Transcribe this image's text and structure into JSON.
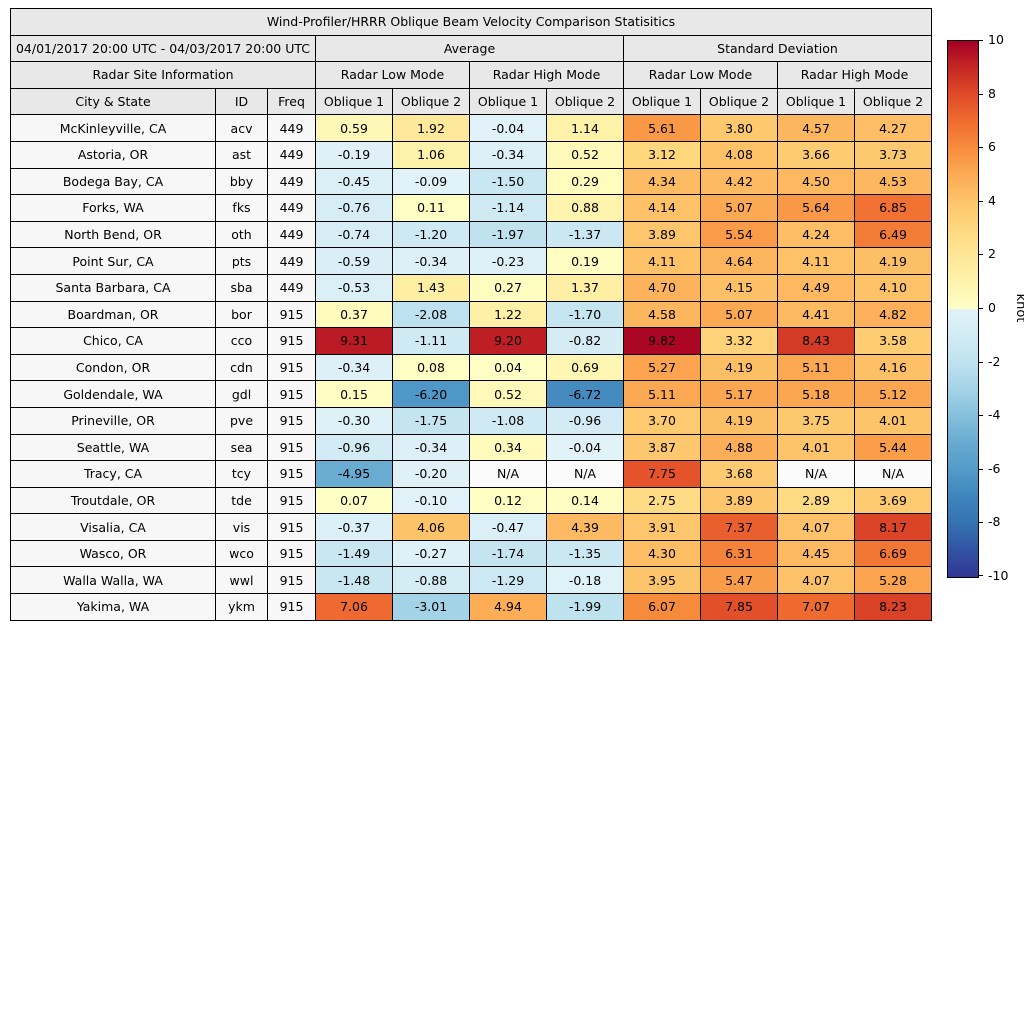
{
  "title": "Wind-Profiler/HRRR Oblique Beam Velocity Comparison Statisitics",
  "period": "04/01/2017 20:00 UTC - 04/03/2017 20:00 UTC",
  "headers": {
    "average": "Average",
    "std_dev": "Standard Deviation",
    "site_info": "Radar Site Information",
    "low_mode": "Radar Low Mode",
    "high_mode": "Radar High Mode",
    "city": "City & State",
    "id": "ID",
    "freq": "Freq",
    "oblique1": "Oblique 1",
    "oblique2": "Oblique 2"
  },
  "colorbar": {
    "label": "knot",
    "min": -10,
    "max": 10,
    "ticks": [
      10,
      8,
      6,
      4,
      2,
      0,
      -2,
      -4,
      -6,
      -8,
      -10
    ]
  },
  "colors": {
    "header_bg": "#e8e8e8",
    "label_bg": "#f7f7f7",
    "na_bg": "#fbfbfb",
    "border": "#000000",
    "warm_stops": [
      [
        0,
        "#ffffc6"
      ],
      [
        1,
        "#fef3ab"
      ],
      [
        2,
        "#fee797"
      ],
      [
        3,
        "#fed87f"
      ],
      [
        4,
        "#fdc46a"
      ],
      [
        5,
        "#fcab55"
      ],
      [
        6,
        "#f78d3d"
      ],
      [
        7,
        "#ef6c30"
      ],
      [
        8,
        "#e04a28"
      ],
      [
        9,
        "#c42723"
      ],
      [
        10,
        "#a50026"
      ]
    ],
    "cool_stops": [
      [
        0,
        "#e2f3f8"
      ],
      [
        1,
        "#d2ebf4"
      ],
      [
        2,
        "#bfe2ef"
      ],
      [
        3,
        "#a3d3e6"
      ],
      [
        4,
        "#85c0dc"
      ],
      [
        5,
        "#68aad0"
      ],
      [
        6,
        "#539bc8"
      ],
      [
        7,
        "#3f85bd"
      ],
      [
        8,
        "#3472b1"
      ],
      [
        9,
        "#3253a3"
      ],
      [
        10,
        "#313695"
      ]
    ]
  },
  "chart_data": {
    "type": "table",
    "title": "Wind-Profiler/HRRR Oblique Beam Velocity Comparison Statisitics",
    "subtitle": "04/01/2017 20:00 UTC - 04/03/2017 20:00 UTC",
    "value_unit": "knot",
    "value_range": [
      -10,
      10
    ],
    "colormap": "diverging blue-yellow-red (RdYlBu reversed)",
    "column_groups": [
      "Radar Site Information",
      "Average - Radar Low Mode",
      "Average - Radar High Mode",
      "Standard Deviation - Radar Low Mode",
      "Standard Deviation - Radar High Mode"
    ],
    "value_columns": [
      "Avg Low Oblique 1",
      "Avg Low Oblique 2",
      "Avg High Oblique 1",
      "Avg High Oblique 2",
      "Std Low Oblique 1",
      "Std Low Oblique 2",
      "Std High Oblique 1",
      "Std High Oblique 2"
    ],
    "rows": [
      {
        "city": "McKinleyville, CA",
        "id": "acv",
        "freq": "449",
        "values": [
          "0.59",
          "1.92",
          "-0.04",
          "1.14",
          "5.61",
          "3.80",
          "4.57",
          "4.27"
        ]
      },
      {
        "city": "Astoria, OR",
        "id": "ast",
        "freq": "449",
        "values": [
          "-0.19",
          "1.06",
          "-0.34",
          "0.52",
          "3.12",
          "4.08",
          "3.66",
          "3.73"
        ]
      },
      {
        "city": "Bodega Bay, CA",
        "id": "bby",
        "freq": "449",
        "values": [
          "-0.45",
          "-0.09",
          "-1.50",
          "0.29",
          "4.34",
          "4.42",
          "4.50",
          "4.53"
        ]
      },
      {
        "city": "Forks, WA",
        "id": "fks",
        "freq": "449",
        "values": [
          "-0.76",
          "0.11",
          "-1.14",
          "0.88",
          "4.14",
          "5.07",
          "5.64",
          "6.85"
        ]
      },
      {
        "city": "North Bend, OR",
        "id": "oth",
        "freq": "449",
        "values": [
          "-0.74",
          "-1.20",
          "-1.97",
          "-1.37",
          "3.89",
          "5.54",
          "4.24",
          "6.49"
        ]
      },
      {
        "city": "Point Sur, CA",
        "id": "pts",
        "freq": "449",
        "values": [
          "-0.59",
          "-0.34",
          "-0.23",
          "0.19",
          "4.11",
          "4.64",
          "4.11",
          "4.19"
        ]
      },
      {
        "city": "Santa Barbara, CA",
        "id": "sba",
        "freq": "449",
        "values": [
          "-0.53",
          "1.43",
          "0.27",
          "1.37",
          "4.70",
          "4.15",
          "4.49",
          "4.10"
        ]
      },
      {
        "city": "Boardman, OR",
        "id": "bor",
        "freq": "915",
        "values": [
          "0.37",
          "-2.08",
          "1.22",
          "-1.70",
          "4.58",
          "5.07",
          "4.41",
          "4.82"
        ]
      },
      {
        "city": "Chico, CA",
        "id": "cco",
        "freq": "915",
        "values": [
          "9.31",
          "-1.11",
          "9.20",
          "-0.82",
          "9.82",
          "3.32",
          "8.43",
          "3.58"
        ]
      },
      {
        "city": "Condon, OR",
        "id": "cdn",
        "freq": "915",
        "values": [
          "-0.34",
          "0.08",
          "0.04",
          "0.69",
          "5.27",
          "4.19",
          "5.11",
          "4.16"
        ]
      },
      {
        "city": "Goldendale, WA",
        "id": "gdl",
        "freq": "915",
        "values": [
          "0.15",
          "-6.20",
          "0.52",
          "-6.72",
          "5.11",
          "5.17",
          "5.18",
          "5.12"
        ]
      },
      {
        "city": "Prineville, OR",
        "id": "pve",
        "freq": "915",
        "values": [
          "-0.30",
          "-1.75",
          "-1.08",
          "-0.96",
          "3.70",
          "4.19",
          "3.75",
          "4.01"
        ]
      },
      {
        "city": "Seattle, WA",
        "id": "sea",
        "freq": "915",
        "values": [
          "-0.96",
          "-0.34",
          "0.34",
          "-0.04",
          "3.87",
          "4.88",
          "4.01",
          "5.44"
        ]
      },
      {
        "city": "Tracy, CA",
        "id": "tcy",
        "freq": "915",
        "values": [
          "-4.95",
          "-0.20",
          "N/A",
          "N/A",
          "7.75",
          "3.68",
          "N/A",
          "N/A"
        ]
      },
      {
        "city": "Troutdale, OR",
        "id": "tde",
        "freq": "915",
        "values": [
          "0.07",
          "-0.10",
          "0.12",
          "0.14",
          "2.75",
          "3.89",
          "2.89",
          "3.69"
        ]
      },
      {
        "city": "Visalia, CA",
        "id": "vis",
        "freq": "915",
        "values": [
          "-0.37",
          "4.06",
          "-0.47",
          "4.39",
          "3.91",
          "7.37",
          "4.07",
          "8.17"
        ]
      },
      {
        "city": "Wasco, OR",
        "id": "wco",
        "freq": "915",
        "values": [
          "-1.49",
          "-0.27",
          "-1.74",
          "-1.35",
          "4.30",
          "6.31",
          "4.45",
          "6.69"
        ]
      },
      {
        "city": "Walla Walla, WA",
        "id": "wwl",
        "freq": "915",
        "values": [
          "-1.48",
          "-0.88",
          "-1.29",
          "-0.18",
          "3.95",
          "5.47",
          "4.07",
          "5.28"
        ]
      },
      {
        "city": "Yakima, WA",
        "id": "ykm",
        "freq": "915",
        "values": [
          "7.06",
          "-3.01",
          "4.94",
          "-1.99",
          "6.07",
          "7.85",
          "7.07",
          "8.23"
        ]
      }
    ]
  }
}
